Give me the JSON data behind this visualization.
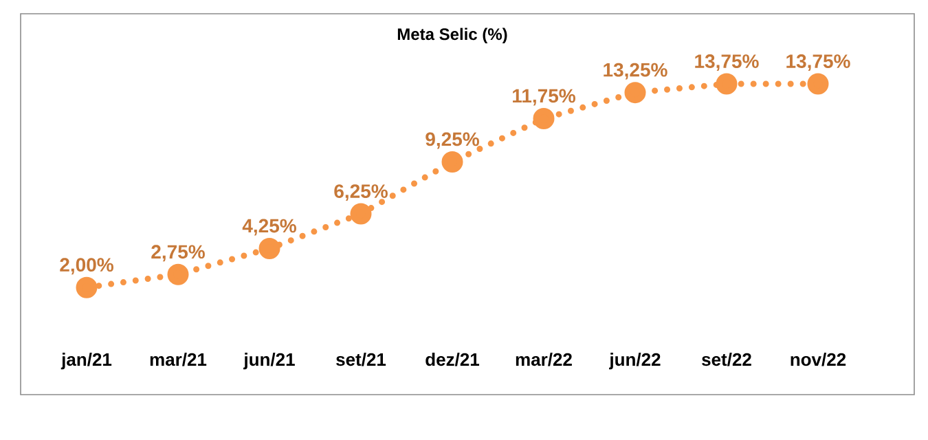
{
  "chart_data": {
    "type": "line",
    "title": "Meta Selic (%)",
    "categories": [
      "jan/21",
      "mar/21",
      "jun/21",
      "set/21",
      "dez/21",
      "mar/22",
      "jun/22",
      "set/22",
      "nov/22"
    ],
    "series": [
      {
        "color": "#F79646",
        "values": [
          2.0,
          2.75,
          4.25,
          6.25,
          9.25,
          11.75,
          13.25,
          13.75,
          13.75
        ],
        "value_labels": [
          "2,00%",
          "2,75%",
          "4,25%",
          "6,25%",
          "9,25%",
          "11,75%",
          "13,25%",
          "13,75%",
          "13,75%"
        ]
      }
    ],
    "marker": "circle",
    "line_style": "dotted"
  }
}
